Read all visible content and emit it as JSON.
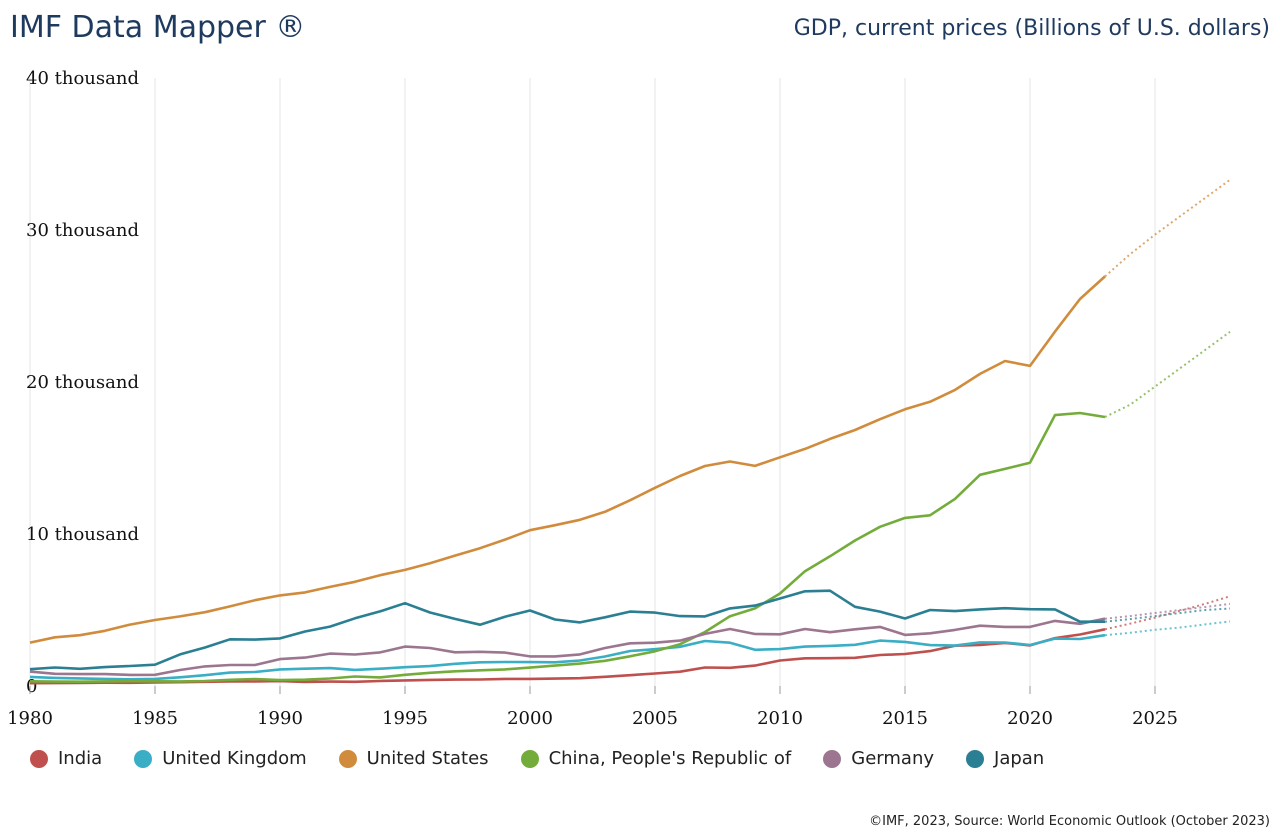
{
  "header": {
    "title": "IMF Data Mapper ®",
    "subtitle": "GDP, current prices (Billions of U.S. dollars)"
  },
  "footer": {
    "text": "©IMF, 2023, Source: World Economic Outlook (October 2023)"
  },
  "chart_data": {
    "type": "line",
    "title": "GDP, current prices (Billions of U.S. dollars)",
    "xlabel": "",
    "ylabel": "",
    "xlim": [
      1980,
      2028
    ],
    "ylim": [
      0,
      40000
    ],
    "grid": "vertical",
    "legend_position": "bottom",
    "x_ticks": [
      1980,
      1985,
      1990,
      1995,
      2000,
      2005,
      2010,
      2015,
      2020,
      2025
    ],
    "y_ticks": [
      {
        "value": 0,
        "label": "0"
      },
      {
        "value": 10000,
        "label": "10 thousand"
      },
      {
        "value": 20000,
        "label": "20 thousand"
      },
      {
        "value": 30000,
        "label": "30 thousand"
      },
      {
        "value": 40000,
        "label": "40 thousand"
      }
    ],
    "actual_end_year": 2023,
    "x_start": 1980,
    "series": [
      {
        "name": "India",
        "color": "#c0504d",
        "values": [
          186,
          193,
          201,
          218,
          212,
          232,
          248,
          279,
          296,
          296,
          321,
          270,
          288,
          279,
          327,
          366,
          399,
          423,
          428,
          467,
          468,
          485,
          514,
          607,
          709,
          820,
          940,
          1217,
          1199,
          1342,
          1676,
          1823,
          1828,
          1857,
          2039,
          2103,
          2295,
          2651,
          2703,
          2836,
          2672,
          3150,
          3390,
          3730,
          4100,
          4500,
          4950,
          5400,
          5900
        ]
      },
      {
        "name": "United Kingdom",
        "color": "#3aaec4",
        "values": [
          600,
          530,
          500,
          470,
          440,
          470,
          570,
          710,
          880,
          920,
          1090,
          1140,
          1180,
          1060,
          1140,
          1240,
          1310,
          1460,
          1560,
          1580,
          1570,
          1560,
          1680,
          1940,
          2300,
          2420,
          2580,
          2960,
          2850,
          2380,
          2430,
          2590,
          2640,
          2710,
          2990,
          2900,
          2690,
          2660,
          2870,
          2860,
          2700,
          3120,
          3090,
          3340,
          3500,
          3700,
          3850,
          4050,
          4250
        ]
      },
      {
        "name": "United States",
        "color": "#d08c3c",
        "values": [
          2857,
          3207,
          3343,
          3634,
          4037,
          4339,
          4580,
          4855,
          5236,
          5642,
          5963,
          6158,
          6520,
          6858,
          7287,
          7640,
          8073,
          8578,
          9063,
          9631,
          10251,
          10582,
          10936,
          11458,
          12214,
          13037,
          13815,
          14475,
          14770,
          14478,
          15049,
          15600,
          16254,
          16843,
          17551,
          18206,
          18695,
          19477,
          20533,
          21381,
          21060,
          23315,
          25463,
          26949,
          28400,
          29700,
          30900,
          32100,
          33300
        ]
      },
      {
        "name": "China, People's Republic of",
        "color": "#74ac3c",
        "values": [
          306,
          290,
          283,
          305,
          314,
          310,
          301,
          327,
          411,
          461,
          398,
          415,
          495,
          623,
          564,
          737,
          868,
          965,
          1032,
          1095,
          1211,
          1339,
          1471,
          1660,
          1955,
          2286,
          2752,
          3550,
          4594,
          5102,
          6087,
          7552,
          8532,
          9570,
          10476,
          11062,
          11233,
          12310,
          13895,
          14280,
          14688,
          17820,
          17963,
          17700,
          18500,
          19700,
          20900,
          22100,
          23300
        ]
      },
      {
        "name": "Germany",
        "color": "#9c7690",
        "values": [
          950,
          800,
          780,
          780,
          730,
          740,
          1050,
          1290,
          1380,
          1380,
          1770,
          1870,
          2130,
          2070,
          2210,
          2590,
          2500,
          2220,
          2250,
          2200,
          1950,
          1950,
          2080,
          2500,
          2810,
          2850,
          2990,
          3430,
          3750,
          3420,
          3400,
          3750,
          3540,
          3730,
          3890,
          3360,
          3470,
          3690,
          3970,
          3890,
          3890,
          4280,
          4090,
          4430,
          4600,
          4800,
          5000,
          5200,
          5400
        ]
      },
      {
        "name": "Japan",
        "color": "#2b7f93",
        "values": [
          1105,
          1218,
          1134,
          1243,
          1318,
          1399,
          2079,
          2532,
          3071,
          3054,
          3133,
          3584,
          3909,
          4455,
          4907,
          5449,
          4833,
          4415,
          4032,
          4562,
          4968,
          4374,
          4183,
          4519,
          4893,
          4831,
          4601,
          4579,
          5106,
          5289,
          5759,
          6233,
          6272,
          5212,
          4897,
          4444,
          5003,
          4930,
          5040,
          5118,
          5050,
          5040,
          4230,
          4230,
          4400,
          4600,
          4800,
          5000,
          5100
        ]
      }
    ]
  }
}
